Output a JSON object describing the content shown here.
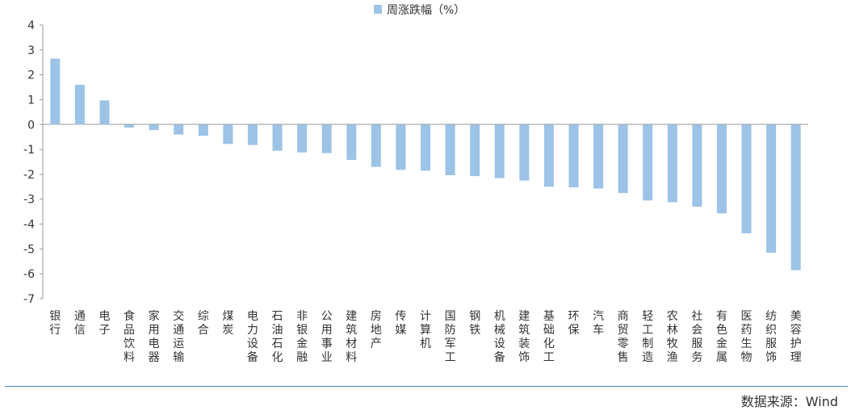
{
  "chart_data": {
    "type": "bar",
    "legend": "周涨跌幅（%）",
    "legend_position": "top-center",
    "ylim": [
      -7,
      4
    ],
    "yticks": [
      4,
      3,
      2,
      1,
      0,
      -1,
      -2,
      -3,
      -4,
      -5,
      -6,
      -7
    ],
    "grid": false,
    "bar_color": "#9dc3e6",
    "categories": [
      "银行",
      "通信",
      "电子",
      "食品饮料",
      "家用电器",
      "交通运输",
      "综合",
      "煤炭",
      "电力设备",
      "石油石化",
      "非银金融",
      "公用事业",
      "建筑材料",
      "房地产",
      "传媒",
      "计算机",
      "国防军工",
      "钢铁",
      "机械设备",
      "建筑装饰",
      "基础化工",
      "环保",
      "汽车",
      "商贸零售",
      "轻工制造",
      "农林牧渔",
      "社会服务",
      "有色金属",
      "医药生物",
      "纺织服饰",
      "美容护理"
    ],
    "values": [
      2.65,
      1.6,
      0.97,
      -0.12,
      -0.22,
      -0.4,
      -0.45,
      -0.78,
      -0.82,
      -1.05,
      -1.12,
      -1.15,
      -1.42,
      -1.7,
      -1.82,
      -1.85,
      -2.03,
      -2.07,
      -2.15,
      -2.25,
      -2.5,
      -2.52,
      -2.57,
      -2.75,
      -3.05,
      -3.12,
      -3.3,
      -3.57,
      -4.37,
      -5.15,
      -5.85
    ]
  },
  "source": "数据来源：Wind"
}
